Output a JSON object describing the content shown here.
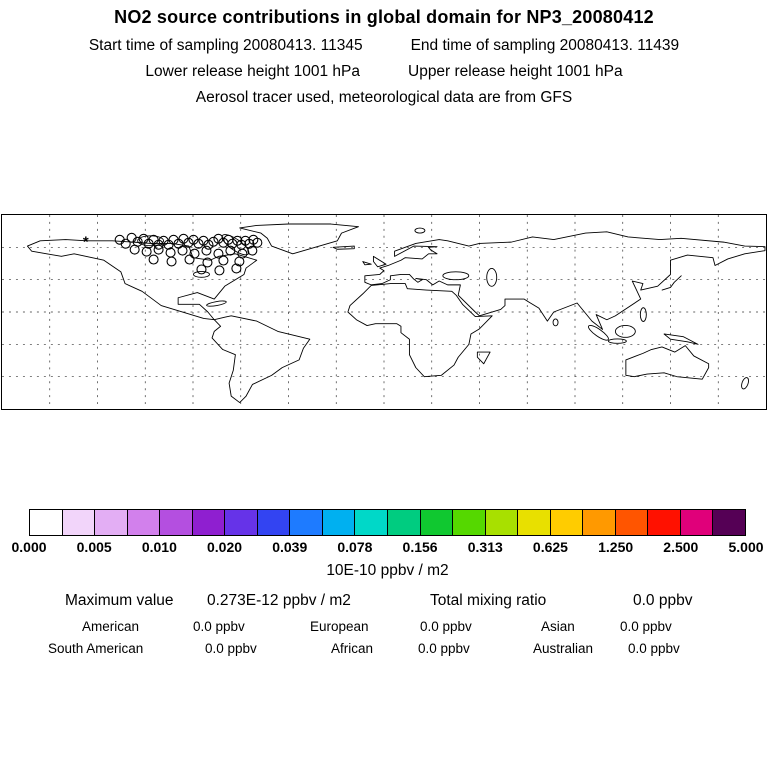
{
  "header": {
    "title": "NO2 source contributions in global domain for NP3_20080412",
    "start_time": "Start time of sampling 20080413. 11345",
    "end_time": "End time of sampling 20080413. 11439",
    "lower_release": "Lower release height 1001 hPa",
    "upper_release": "Upper release height 1001 hPa",
    "tracer_info": "Aerosol tracer used, meteorological data are from GFS"
  },
  "chart_data": {
    "type": "heatmap",
    "title": "NO2 source contributions in global domain for NP3_20080412",
    "colorbar": {
      "ticks": [
        "0.000",
        "0.005",
        "0.010",
        "0.020",
        "0.039",
        "0.078",
        "0.156",
        "0.313",
        "0.625",
        "1.250",
        "2.500",
        "5.000"
      ],
      "units_label": "10E-10 ppbv / m2",
      "colors": [
        "#ffffff",
        "#f2d5fa",
        "#e3aef4",
        "#d280ec",
        "#b44fe0",
        "#8f1fd0",
        "#6633e8",
        "#3344f2",
        "#1e7bff",
        "#00b0f0",
        "#00d8c8",
        "#00cc80",
        "#10c830",
        "#55d800",
        "#a8e000",
        "#e8e000",
        "#ffcc00",
        "#ff9900",
        "#ff5500",
        "#ff1100",
        "#e0007a",
        "#550055"
      ]
    },
    "stats": {
      "maximum_label": "Maximum value",
      "maximum_value": "0.273E-12 ppbv / m2",
      "total_label": "Total mixing ratio",
      "total_value": "0.0 ppbv",
      "regions": [
        {
          "label": "American",
          "value": "0.0 ppbv"
        },
        {
          "label": "European",
          "value": "0.0 ppbv"
        },
        {
          "label": "Asian",
          "value": "0.0 ppbv"
        },
        {
          "label": "South American",
          "value": "0.0 ppbv"
        },
        {
          "label": "African",
          "value": "0.0 ppbv"
        },
        {
          "label": "Australian",
          "value": "0.0 ppbv"
        }
      ]
    },
    "markers": {
      "asterisk": [
        84,
        32
      ],
      "points": [
        [
          118,
          25
        ],
        [
          124,
          29
        ],
        [
          130,
          23
        ],
        [
          136,
          27
        ],
        [
          142,
          24
        ],
        [
          147,
          29
        ],
        [
          152,
          25
        ],
        [
          157,
          30
        ],
        [
          162,
          26
        ],
        [
          167,
          30
        ],
        [
          172,
          25
        ],
        [
          177,
          29
        ],
        [
          182,
          24
        ],
        [
          187,
          28
        ],
        [
          192,
          25
        ],
        [
          197,
          29
        ],
        [
          202,
          26
        ],
        [
          207,
          30
        ],
        [
          212,
          27
        ],
        [
          217,
          24
        ],
        [
          222,
          28
        ],
        [
          227,
          25
        ],
        [
          231,
          29
        ],
        [
          236,
          26
        ],
        [
          240,
          30
        ],
        [
          244,
          26
        ],
        [
          248,
          29
        ],
        [
          252,
          25
        ],
        [
          256,
          28
        ],
        [
          133,
          35
        ],
        [
          145,
          37
        ],
        [
          157,
          35
        ],
        [
          169,
          38
        ],
        [
          181,
          36
        ],
        [
          193,
          39
        ],
        [
          205,
          36
        ],
        [
          217,
          39
        ],
        [
          229,
          36
        ],
        [
          241,
          39
        ],
        [
          251,
          36
        ],
        [
          152,
          45
        ],
        [
          170,
          47
        ],
        [
          188,
          45
        ],
        [
          206,
          48
        ],
        [
          222,
          46
        ],
        [
          238,
          47
        ],
        [
          200,
          55
        ],
        [
          218,
          56
        ],
        [
          235,
          54
        ]
      ]
    },
    "map": {
      "grid_columns": 16,
      "grid_rows": 6,
      "grid_style": "dashed"
    }
  }
}
